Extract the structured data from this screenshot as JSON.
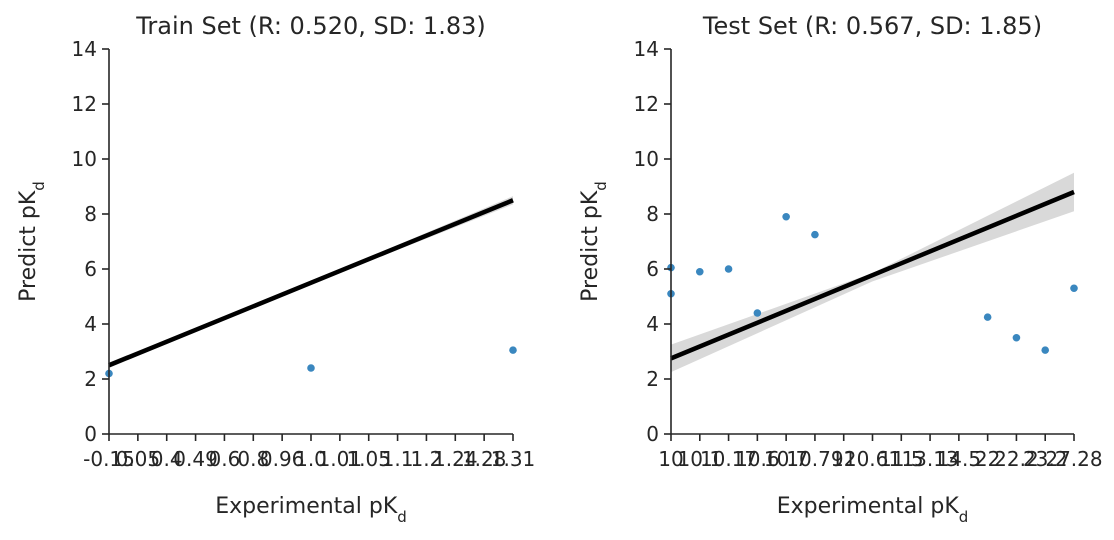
{
  "chart_data": [
    {
      "type": "scatter",
      "title": "Train Set (R: 0.520, SD: 1.83)",
      "x_label": {
        "text": "Experimental pK",
        "subscript": "d"
      },
      "y_label": {
        "text": "Predict pK",
        "subscript": "d"
      },
      "categories": [
        "-0.15",
        "0.05",
        "0.4",
        "0.49",
        "0.6",
        "0.8",
        "0.96",
        "1.0",
        "1.01",
        "1.05",
        "1.1",
        "1.2",
        "1.24",
        "1.28",
        "1.31"
      ],
      "series": [
        {
          "x": [
            "-0.15",
            "1.0",
            "1.31"
          ],
          "values": [
            2.2,
            2.4,
            3.05
          ],
          "color": "#3a87bf"
        }
      ],
      "fit": {
        "values": [
          2.5,
          8.5
        ],
        "color": "#000000"
      },
      "ci": {
        "lower": [
          2.4,
          5.45,
          8.35
        ],
        "upper": [
          2.6,
          5.55,
          8.65
        ],
        "color": "#d9d9d9"
      },
      "ylim": [
        0,
        14
      ],
      "yticks": [
        0,
        2,
        4,
        6,
        8,
        10,
        12,
        14
      ]
    },
    {
      "type": "scatter",
      "title": "Test Set (R: 0.567, SD: 1.85)",
      "x_label": {
        "text": "Experimental pK",
        "subscript": "d"
      },
      "y_label": {
        "text": "Predict pK",
        "subscript": "d"
      },
      "categories": [
        "10",
        "10.1",
        "10.17",
        "10.6",
        "10.7",
        "10.79",
        "12",
        "10.61",
        "11.5",
        "13.13",
        "14.5",
        "22",
        "22.2",
        "23.2",
        "27.28"
      ],
      "series": [
        {
          "x": [
            "10",
            "10",
            "10.1",
            "10.17",
            "10.6",
            "10.7",
            "10.79",
            "22",
            "22.2",
            "23.2",
            "27.28"
          ],
          "values": [
            6.05,
            5.1,
            5.9,
            6.0,
            4.4,
            7.9,
            7.25,
            4.25,
            3.5,
            3.05,
            5.3
          ],
          "color": "#3a87bf"
        }
      ],
      "fit": {
        "values": [
          2.75,
          8.8
        ],
        "color": "#000000"
      },
      "ci": {
        "lower": [
          2.25,
          5.55,
          8.1
        ],
        "upper": [
          3.25,
          5.85,
          9.5
        ],
        "color": "#d9d9d9"
      },
      "ylim": [
        0,
        14
      ],
      "yticks": [
        0,
        2,
        4,
        6,
        8,
        10,
        12,
        14
      ]
    }
  ]
}
